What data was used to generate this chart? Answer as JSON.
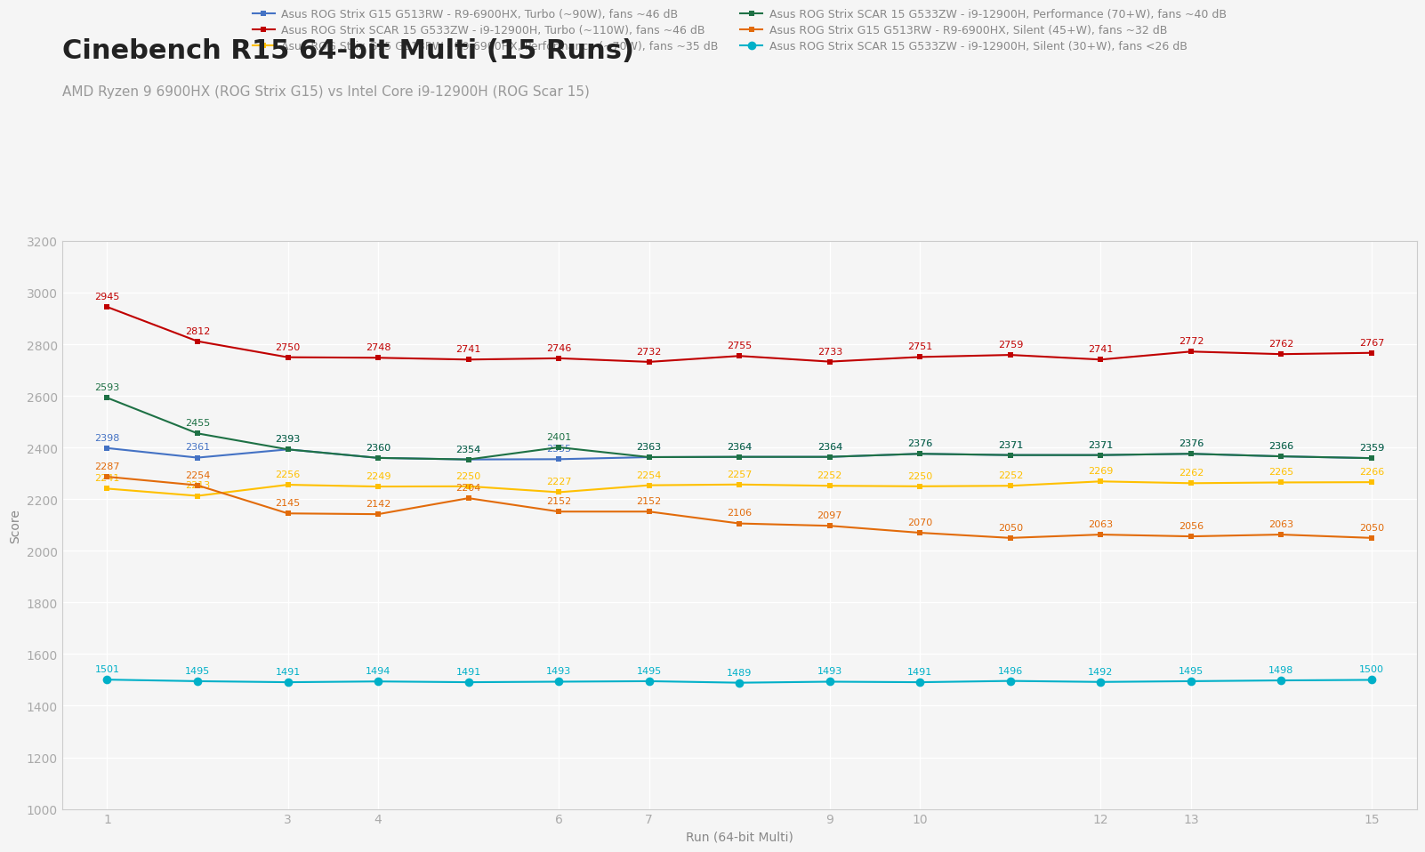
{
  "title": "Cinebench R15 64-bit Multi (15 Runs)",
  "subtitle": "AMD Ryzen 9 6900HX (ROG Strix G15) vs Intel Core i9-12900H (ROG Scar 15)",
  "xlabel": "Run (64-bit Multi)",
  "ylabel": "Score",
  "background_color": "#f5f5f5",
  "grid_color": "#ffffff",
  "x": [
    1,
    2,
    3,
    4,
    5,
    6,
    7,
    8,
    9,
    10,
    11,
    12,
    13,
    14,
    15
  ],
  "series": [
    {
      "label": "Asus ROG Strix G15 G513RW - R9-6900HX, Turbo (~90W), fans ~46 dB",
      "color": "#4472c4",
      "marker": "s",
      "markersize": 5,
      "linewidth": 1.5,
      "values": [
        2398,
        2361,
        2393,
        2360,
        2354,
        2355,
        2363,
        2364,
        2364,
        2376,
        2371,
        2371,
        2376,
        2366,
        2359
      ]
    },
    {
      "label": "Asus ROG Strix G15 G513RW - R9-6900HX, Performance (~70W), fans ~35 dB",
      "color": "#ffc000",
      "marker": "s",
      "markersize": 5,
      "linewidth": 1.5,
      "values": [
        2241,
        2213,
        2256,
        2249,
        2250,
        2227,
        2254,
        2257,
        2252,
        2250,
        2252,
        2269,
        2262,
        2265,
        2266
      ]
    },
    {
      "label": "Asus ROG Strix G15 G513RW - R9-6900HX, Silent (45+W), fans ~32 dB",
      "color": "#e26b0a",
      "marker": "s",
      "markersize": 5,
      "linewidth": 1.5,
      "values": [
        2287,
        2254,
        2145,
        2142,
        2204,
        2152,
        2152,
        2106,
        2097,
        2070,
        2050,
        2063,
        2056,
        2063,
        2050
      ]
    },
    {
      "label": "Asus ROG Strix SCAR 15 G533ZW - i9-12900H, Turbo (~110W), fans ~46 dB",
      "color": "#c00000",
      "marker": "s",
      "markersize": 5,
      "linewidth": 1.5,
      "values": [
        2945,
        2812,
        2750,
        2748,
        2741,
        2746,
        2732,
        2755,
        2733,
        2751,
        2759,
        2741,
        2772,
        2762,
        2767
      ]
    },
    {
      "label": "Asus ROG Strix SCAR 15 G533ZW - i9-12900H, Performance (70+W), fans ~40 dB",
      "color": "#1e7145",
      "marker": "s",
      "markersize": 5,
      "linewidth": 1.5,
      "values": [
        2593,
        2455,
        2393,
        2360,
        2354,
        2401,
        2363,
        2364,
        2364,
        2376,
        2371,
        2371,
        2376,
        2366,
        2359
      ]
    },
    {
      "label": "Asus ROG Strix SCAR 15 G533ZW - i9-12900H, Silent (30+W), fans <26 dB",
      "color": "#00b0c8",
      "marker": "o",
      "markersize": 7,
      "linewidth": 1.5,
      "values": [
        1501,
        1495,
        1491,
        1494,
        1491,
        1493,
        1495,
        1489,
        1493,
        1491,
        1496,
        1492,
        1495,
        1498,
        1500
      ]
    }
  ],
  "ylim": [
    1000,
    3200
  ],
  "yticks": [
    1000,
    1200,
    1400,
    1600,
    1800,
    2000,
    2200,
    2400,
    2600,
    2800,
    3000,
    3200
  ],
  "xticks": [
    1,
    3,
    4,
    6,
    7,
    9,
    10,
    12,
    13,
    15
  ],
  "title_fontsize": 22,
  "subtitle_fontsize": 11,
  "label_fontsize": 10,
  "tick_fontsize": 10,
  "annotation_fontsize": 8,
  "legend_fontsize": 9,
  "title_color": "#222222",
  "subtitle_color": "#999999",
  "tick_color": "#aaaaaa",
  "spine_color": "#cccccc",
  "label_color": "#888888"
}
